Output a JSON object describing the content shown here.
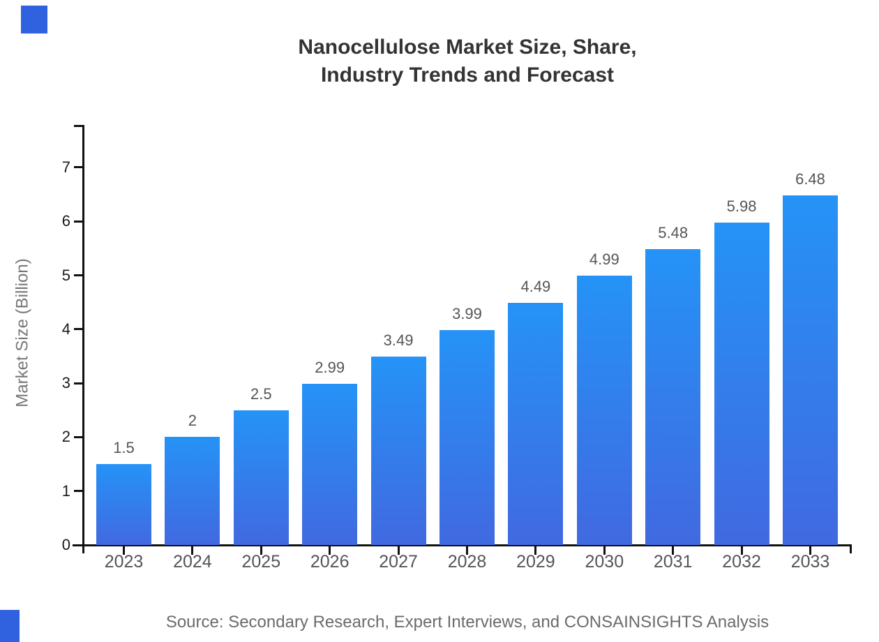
{
  "page": {
    "background": "#ffffff"
  },
  "brand": {
    "accent_color": "#3061df"
  },
  "header": {
    "title_line1": "Nanocellulose Market Size, Share,",
    "title_line2": "Industry Trends and Forecast"
  },
  "footer": {
    "source": "Source: Secondary Research, Expert Interviews, and CONSAINSIGHTS Analysis"
  },
  "chart_data": {
    "type": "bar",
    "title": "Nanocellulose Market Size, Share, Industry Trends and Forecast",
    "categories": [
      "2023",
      "2024",
      "2025",
      "2026",
      "2027",
      "2028",
      "2029",
      "2030",
      "2031",
      "2032",
      "2033"
    ],
    "values": [
      1.5,
      2,
      2.5,
      2.99,
      3.49,
      3.99,
      4.49,
      4.99,
      5.48,
      5.98,
      6.48
    ],
    "value_labels": [
      "1.5",
      "2",
      "2.5",
      "2.99",
      "3.49",
      "3.99",
      "4.49",
      "4.99",
      "5.48",
      "5.98",
      "6.48"
    ],
    "xlabel": "",
    "ylabel": "Market Size (Billion)",
    "ylim": [
      0,
      7.8
    ],
    "yticks": [
      0,
      1,
      2,
      3,
      4,
      5,
      6,
      7
    ],
    "grid": false,
    "legend": "none",
    "bar_color_top": "#2593f7",
    "bar_color_bottom": "#4169e0",
    "axis_color": "#111111",
    "y_tick_label_color": "#1a1a1a",
    "x_tick_label_color": "#555555",
    "value_label_color": "#555555",
    "title_color": "#333333",
    "ylabel_color": "#777777",
    "source_color": "#6b6b6b"
  }
}
